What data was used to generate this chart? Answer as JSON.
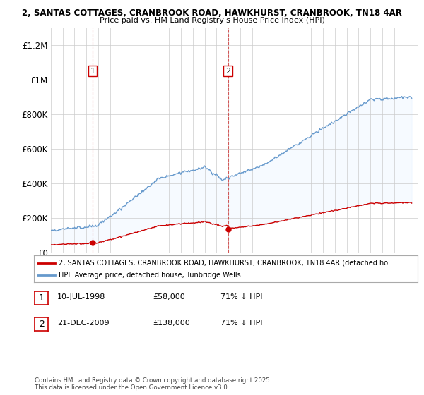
{
  "title_line1": "2, SANTAS COTTAGES, CRANBROOK ROAD, HAWKHURST, CRANBROOK, TN18 4AR",
  "title_line2": "Price paid vs. HM Land Registry's House Price Index (HPI)",
  "ylim": [
    0,
    1300000
  ],
  "yticks": [
    0,
    200000,
    400000,
    600000,
    800000,
    1000000,
    1200000
  ],
  "ytick_labels": [
    "£0",
    "£200K",
    "£400K",
    "£600K",
    "£800K",
    "£1M",
    "£1.2M"
  ],
  "purchase_labels": [
    "1",
    "2"
  ],
  "legend_entries": [
    "2, SANTAS COTTAGES, CRANBROOK ROAD, HAWKHURST, CRANBROOK, TN18 4AR (detached ho",
    "HPI: Average price, detached house, Tunbridge Wells"
  ],
  "legend_colors": [
    "#cc0000",
    "#6699cc"
  ],
  "table_rows": [
    [
      "1",
      "10-JUL-1998",
      "£58,000",
      "71% ↓ HPI"
    ],
    [
      "2",
      "21-DEC-2009",
      "£138,000",
      "71% ↓ HPI"
    ]
  ],
  "footer_text": "Contains HM Land Registry data © Crown copyright and database right 2025.\nThis data is licensed under the Open Government Licence v3.0.",
  "bg_color": "#ffffff",
  "plot_bg_color": "#ffffff",
  "grid_color": "#cccccc",
  "fill_color": "#ddeeff",
  "red_line_color": "#cc0000",
  "blue_line_color": "#6699cc",
  "purchase_prices": [
    58000,
    138000
  ],
  "t1_year": 1998.52,
  "t2_year": 2009.97
}
